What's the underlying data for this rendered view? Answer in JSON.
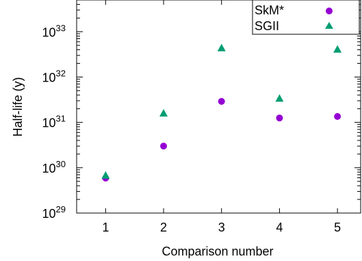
{
  "chart_data": {
    "type": "scatter",
    "title": "",
    "xlabel": "Comparison number",
    "ylabel": "Half-life (y)",
    "xlim": [
      0.5,
      5.4
    ],
    "ylim": [
      1e+29,
      5e+33
    ],
    "yscale": "log",
    "x_ticks": [
      "1",
      "2",
      "3",
      "4",
      "5"
    ],
    "y_ticks": [
      {
        "base": "10",
        "exp": "29",
        "value": 1e+29
      },
      {
        "base": "10",
        "exp": "30",
        "value": 1e+30
      },
      {
        "base": "10",
        "exp": "31",
        "value": 1e+31
      },
      {
        "base": "10",
        "exp": "32",
        "value": 1e+32
      },
      {
        "base": "10",
        "exp": "33",
        "value": 1e+33
      }
    ],
    "grid": false,
    "legend_position": "top-right",
    "series": [
      {
        "name": "SkM*",
        "marker": "circle",
        "color": "#9400d3",
        "x": [
          1,
          2,
          3,
          4,
          5
        ],
        "y": [
          5.9e+29,
          3e+30,
          2.9e+31,
          1.25e+31,
          1.35e+31
        ]
      },
      {
        "name": "SGII",
        "marker": "triangle",
        "color": "#009e73",
        "x": [
          1,
          2,
          3,
          4,
          5
        ],
        "y": [
          6.8e+29,
          1.6e+31,
          4.4e+32,
          3.4e+31,
          4.1e+32
        ]
      }
    ]
  }
}
